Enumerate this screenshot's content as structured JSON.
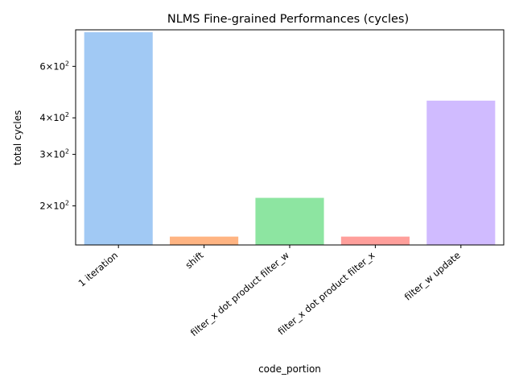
{
  "chart_data": {
    "type": "bar",
    "title": "NLMS Fine-grained Performances (cycles)",
    "xlabel": "code_portion",
    "ylabel": "total cycles",
    "yscale": "log",
    "ylim": [
      147,
      800
    ],
    "grid": false,
    "categories": [
      "1 iteration",
      "shift",
      "filter_x dot product filter_w",
      "filter_x dot product filter_x",
      "filter_w update"
    ],
    "values": [
      785,
      157,
      213,
      157,
      458
    ],
    "colors": [
      "#a1c9f4",
      "#ffb482",
      "#8de5a1",
      "#ff9f9b",
      "#d0bbff"
    ],
    "yticks": [
      {
        "value": 200,
        "base": "2",
        "exp": "2"
      },
      {
        "value": 300,
        "base": "3",
        "exp": "2"
      },
      {
        "value": 400,
        "base": "4",
        "exp": "2"
      },
      {
        "value": 600,
        "base": "6",
        "exp": "2"
      }
    ],
    "ytick_times": "×10"
  }
}
